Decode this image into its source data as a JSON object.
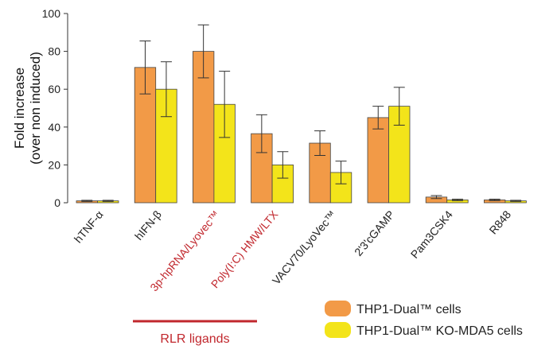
{
  "chart_data": {
    "type": "bar",
    "title": "",
    "xlabel": "",
    "ylabel": "Fold increase",
    "ylabel_sub": "(over non induced)",
    "ylim": [
      0,
      100
    ],
    "yticks": [
      0,
      20,
      40,
      60,
      80,
      100
    ],
    "categories": [
      "hTNF-α",
      "hIFN-β",
      "3p-hpRNA/Lyovec™",
      "Poly(I:C) HMW/LTX",
      "VACV70/LyoVec™",
      "2'3'cGAMP",
      "Pam3CSK4",
      "R848"
    ],
    "highlighted_categories": [
      "3p-hpRNA/Lyovec™",
      "Poly(I:C) HMW/LTX"
    ],
    "series": [
      {
        "name": "THP1-Dual™ cells",
        "color": "#f29a47",
        "values": [
          1,
          71.5,
          80,
          36.5,
          31.5,
          45,
          3,
          1.5
        ],
        "errors": [
          0.3,
          14,
          14,
          10,
          6.5,
          6,
          0.8,
          0.4
        ]
      },
      {
        "name": "THP1-Dual™ KO-MDA5 cells",
        "color": "#f3e41a",
        "values": [
          1,
          60,
          52,
          20,
          16,
          51,
          1.5,
          1
        ],
        "errors": [
          0.3,
          14.5,
          17.5,
          7,
          6,
          10,
          0.4,
          0.3
        ]
      }
    ],
    "group_annotation": {
      "label": "RLR ligands",
      "color": "#c1272d",
      "spans": [
        "hIFN-β",
        "Poly(I:C) HMW/LTX"
      ]
    },
    "legend_position": "bottom-right",
    "grid": false
  }
}
